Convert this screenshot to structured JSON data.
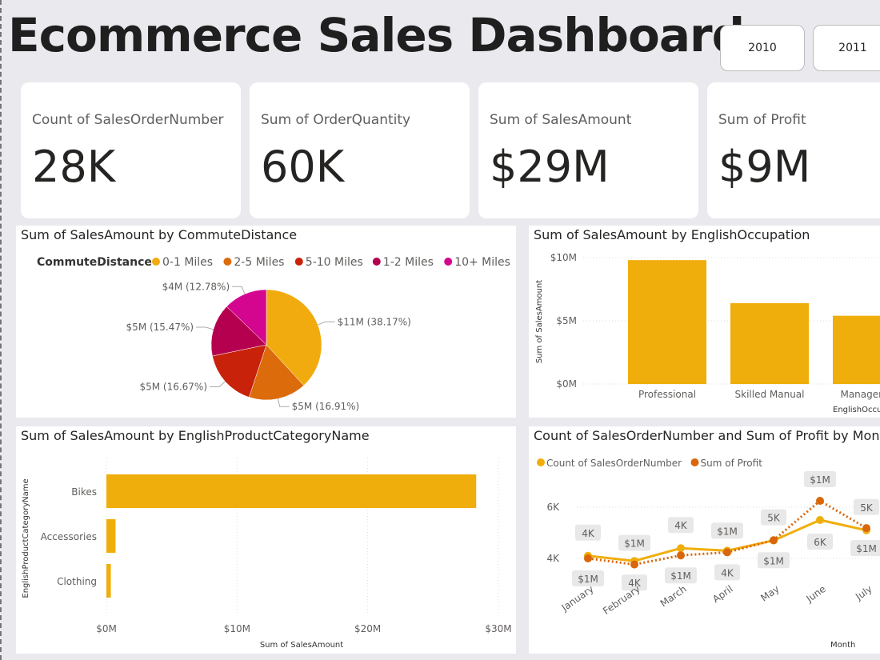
{
  "title": "Ecommerce Sales Dashboard",
  "year_buttons": [
    "2010",
    "2011"
  ],
  "kpis": [
    {
      "label": "Count of SalesOrderNumber",
      "value": "28K"
    },
    {
      "label": "Sum of OrderQuantity",
      "value": "60K"
    },
    {
      "label": "Sum of SalesAmount",
      "value": "$29M"
    },
    {
      "label": "Sum of Profit",
      "value": "$9M"
    }
  ],
  "chart_data": [
    {
      "type": "pie",
      "title": "Sum of SalesAmount by CommuteDistance",
      "legend_title": "CommuteDistance",
      "legend": "top-left",
      "categories": [
        "0-1 Miles",
        "2-5 Miles",
        "5-10 Miles",
        "1-2 Miles",
        "10+ Miles"
      ],
      "values": [
        38.17,
        16.91,
        16.67,
        15.47,
        12.78
      ],
      "labels": [
        "$11M (38.17%)",
        "$5M (16.91%)",
        "$5M (16.67%)",
        "$5M (15.47%)",
        "$4M (12.78%)"
      ],
      "colors": [
        "#f2ab0e",
        "#dc6b0c",
        "#c8220b",
        "#b4004e",
        "#d4068f"
      ]
    },
    {
      "type": "bar",
      "title": "Sum of SalesAmount by EnglishOccupation",
      "xlabel": "EnglishOccupation",
      "ylabel": "Sum of SalesAmount",
      "categories": [
        "Professional",
        "Skilled Manual",
        "Management"
      ],
      "values": [
        9.8,
        6.4,
        5.4
      ],
      "ylim": [
        0,
        10
      ],
      "yticks": [
        "$0M",
        "$5M",
        "$10M"
      ],
      "color": "#f0ae0c"
    },
    {
      "type": "bar",
      "orientation": "horizontal",
      "title": "Sum of SalesAmount by EnglishProductCategoryName",
      "xlabel": "Sum of SalesAmount",
      "ylabel": "EnglishProductCategoryName",
      "categories": [
        "Bikes",
        "Accessories",
        "Clothing"
      ],
      "values": [
        28.3,
        0.7,
        0.34
      ],
      "xlim": [
        0,
        30
      ],
      "xticks": [
        "$0M",
        "$10M",
        "$20M",
        "$30M"
      ],
      "color": "#f0ae0c"
    },
    {
      "type": "line",
      "title": "Count of SalesOrderNumber and Sum of Profit by Month",
      "xlabel": "Month",
      "legend": "top-left",
      "categories": [
        "January",
        "February",
        "March",
        "April",
        "May",
        "June",
        "July"
      ],
      "yticks": [
        "4K",
        "6K"
      ],
      "series": [
        {
          "name": "Count of SalesOrderNumber",
          "values": [
            4.1,
            3.9,
            4.4,
            4.3,
            4.7,
            5.5,
            5.1
          ],
          "labels": [
            "4K",
            "4K",
            "4K",
            "4K",
            "5K",
            "6K",
            "5K"
          ],
          "color": "#f0ae0c"
        },
        {
          "name": "Sum of Profit",
          "values": [
            0.74,
            0.7,
            0.76,
            0.78,
            0.86,
            1.12,
            0.94
          ],
          "labels": [
            "$1M",
            "$1M",
            "$1M",
            "$1M",
            "$1M",
            "$1M",
            "$1M"
          ],
          "color": "#d9660b"
        }
      ]
    }
  ]
}
